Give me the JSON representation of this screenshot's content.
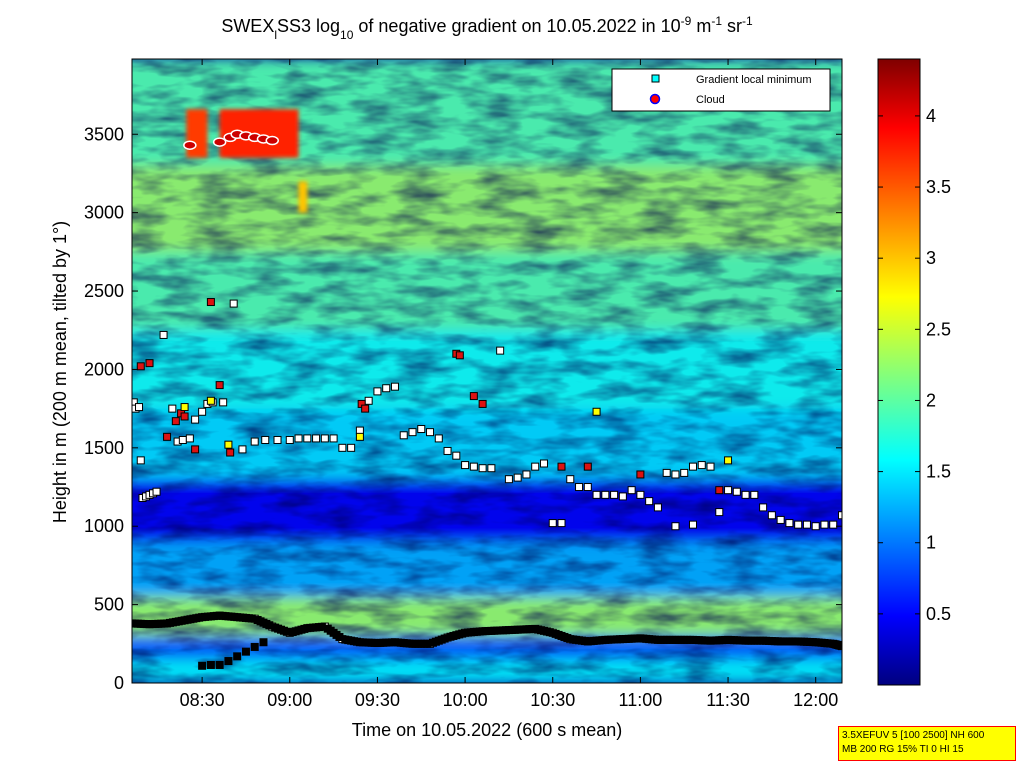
{
  "window": {
    "title": "SWEXₗSS3 log₁₀ of negative gradient on 10.05.2022 in 10⁻⁹ m⁻¹ sr⁻¹"
  },
  "params": {
    "line1": "3.5XEFUV 5 [100 2500] NH 600",
    "line2": "MB 200 RG 15% TI 0 HI 15"
  },
  "chart_data": {
    "type": "heatmap",
    "title_parts": {
      "t1": "SWEX",
      "t1_sub": "l",
      "t2": "SS3 log",
      "t2_sub": "10",
      "t3": " of negative gradient on 10.05.2022 in 10",
      "t3_sup": "-9",
      "t4": " m",
      "t4_sup": "-1",
      "t5": " sr",
      "t5_sup": "-1"
    },
    "xlabel": "Time on 10.05.2022 (600 s mean)",
    "ylabel": "Height in m (200 m mean, tilted by 1°)",
    "x_ticks": [
      "08:30",
      "09:00",
      "09:30",
      "10:00",
      "10:30",
      "11:00",
      "11:30",
      "12:00"
    ],
    "x_tick_hours": [
      8.5,
      9.0,
      9.5,
      10.0,
      10.5,
      11.0,
      11.5,
      12.0
    ],
    "xlim_hours": [
      8.1,
      12.15
    ],
    "y_ticks": [
      "0",
      "500",
      "1000",
      "1500",
      "2000",
      "2500",
      "3000",
      "3500"
    ],
    "y_tick_values": [
      0,
      500,
      1000,
      1500,
      2000,
      2500,
      3000,
      3500
    ],
    "ylim": [
      0,
      3980
    ],
    "colorbar": {
      "ticks": [
        "0.5",
        "1",
        "1.5",
        "2",
        "2.5",
        "3",
        "3.5",
        "4"
      ],
      "tick_values": [
        0.5,
        1,
        1.5,
        2,
        2.5,
        3,
        3.5,
        4
      ],
      "range": [
        0,
        4.4
      ],
      "colormap": "jet"
    },
    "legend": {
      "placement": "top-right",
      "entries": [
        {
          "label": "Gradient local minimum",
          "marker": "square",
          "color": "#00ffff"
        },
        {
          "label": "Cloud",
          "marker": "circle",
          "color": "#ff0000",
          "edge": "#0000ff"
        }
      ]
    },
    "layers": [
      {
        "h": 3600,
        "v": 2.0
      },
      {
        "h": 3000,
        "v": 2.3
      },
      {
        "h": 2500,
        "v": 2.0
      },
      {
        "h": 2000,
        "v": 1.7
      },
      {
        "h": 1500,
        "v": 1.5
      },
      {
        "h": 1100,
        "v": 0.5
      },
      {
        "h": 700,
        "v": 1.3
      },
      {
        "h": 400,
        "v": 2.3
      },
      {
        "h": 200,
        "v": 1.0
      },
      {
        "h": 100,
        "v": 1.6
      }
    ],
    "cloud_heatmap": [
      {
        "t0": 8.41,
        "t1": 8.53,
        "h0": 3350,
        "h1": 3660,
        "v": 3.6
      },
      {
        "t0": 8.6,
        "t1": 9.05,
        "h0": 3350,
        "h1": 3660,
        "v": 3.7
      },
      {
        "t0": 9.05,
        "t1": 9.1,
        "h0": 3000,
        "h1": 3200,
        "v": 3.0
      }
    ],
    "series": [
      {
        "name": "Gradient local minimum",
        "points_t_h": [
          [
            8.11,
            1790
          ],
          [
            8.12,
            1750
          ],
          [
            8.14,
            1760
          ],
          [
            8.16,
            1180
          ],
          [
            8.18,
            1190
          ],
          [
            8.2,
            1200
          ],
          [
            8.22,
            1210
          ],
          [
            8.24,
            1220
          ],
          [
            8.15,
            1420
          ],
          [
            8.28,
            2220
          ],
          [
            8.33,
            1750
          ],
          [
            8.36,
            1540
          ],
          [
            8.39,
            1550
          ],
          [
            8.43,
            1560
          ],
          [
            8.46,
            1680
          ],
          [
            8.5,
            1730
          ],
          [
            8.53,
            1780
          ],
          [
            8.56,
            1790
          ],
          [
            8.62,
            1790
          ],
          [
            8.68,
            2420
          ],
          [
            8.73,
            1490
          ],
          [
            8.8,
            1540
          ],
          [
            8.86,
            1550
          ],
          [
            8.93,
            1550
          ],
          [
            9.0,
            1550
          ],
          [
            9.05,
            1560
          ],
          [
            9.1,
            1560
          ],
          [
            9.15,
            1560
          ],
          [
            9.2,
            1560
          ],
          [
            9.25,
            1560
          ],
          [
            9.3,
            1500
          ],
          [
            9.35,
            1500
          ],
          [
            9.4,
            1610
          ],
          [
            9.45,
            1800
          ],
          [
            9.5,
            1860
          ],
          [
            9.55,
            1880
          ],
          [
            9.6,
            1890
          ],
          [
            9.65,
            1580
          ],
          [
            9.7,
            1600
          ],
          [
            9.75,
            1620
          ],
          [
            9.8,
            1600
          ],
          [
            9.85,
            1560
          ],
          [
            9.9,
            1480
          ],
          [
            9.95,
            1450
          ],
          [
            10.0,
            1390
          ],
          [
            10.05,
            1380
          ],
          [
            10.1,
            1370
          ],
          [
            10.15,
            1370
          ],
          [
            10.2,
            2120
          ],
          [
            10.25,
            1300
          ],
          [
            10.3,
            1310
          ],
          [
            10.35,
            1330
          ],
          [
            10.4,
            1380
          ],
          [
            10.45,
            1400
          ],
          [
            10.5,
            1020
          ],
          [
            10.55,
            1020
          ],
          [
            10.6,
            1300
          ],
          [
            10.65,
            1250
          ],
          [
            10.7,
            1250
          ],
          [
            10.75,
            1200
          ],
          [
            10.8,
            1200
          ],
          [
            10.85,
            1200
          ],
          [
            10.9,
            1190
          ],
          [
            10.95,
            1230
          ],
          [
            11.0,
            1200
          ],
          [
            11.05,
            1160
          ],
          [
            11.1,
            1120
          ],
          [
            11.15,
            1340
          ],
          [
            11.2,
            1330
          ],
          [
            11.25,
            1340
          ],
          [
            11.3,
            1380
          ],
          [
            11.35,
            1390
          ],
          [
            11.4,
            1380
          ],
          [
            11.45,
            1090
          ],
          [
            11.5,
            1230
          ],
          [
            11.55,
            1220
          ],
          [
            11.6,
            1200
          ],
          [
            11.65,
            1200
          ],
          [
            11.7,
            1120
          ],
          [
            11.75,
            1070
          ],
          [
            11.8,
            1040
          ],
          [
            11.85,
            1020
          ],
          [
            11.9,
            1010
          ],
          [
            11.95,
            1010
          ],
          [
            12.0,
            1000
          ],
          [
            12.05,
            1010
          ],
          [
            12.1,
            1010
          ],
          [
            12.15,
            1070
          ],
          [
            11.2,
            1000
          ],
          [
            11.3,
            1010
          ]
        ],
        "low_line_t_h": [
          [
            8.1,
            380
          ],
          [
            8.2,
            375
          ],
          [
            8.3,
            380
          ],
          [
            8.4,
            400
          ],
          [
            8.5,
            420
          ],
          [
            8.6,
            430
          ],
          [
            8.7,
            420
          ],
          [
            8.8,
            410
          ],
          [
            8.9,
            360
          ],
          [
            9.0,
            320
          ],
          [
            9.1,
            350
          ],
          [
            9.2,
            360
          ],
          [
            9.3,
            280
          ],
          [
            9.4,
            260
          ],
          [
            9.5,
            255
          ],
          [
            9.6,
            260
          ],
          [
            9.7,
            250
          ],
          [
            9.8,
            250
          ],
          [
            9.9,
            290
          ],
          [
            10.0,
            320
          ],
          [
            10.1,
            330
          ],
          [
            10.2,
            335
          ],
          [
            10.3,
            340
          ],
          [
            10.4,
            345
          ],
          [
            10.5,
            320
          ],
          [
            10.6,
            280
          ],
          [
            10.7,
            265
          ],
          [
            10.8,
            275
          ],
          [
            10.9,
            280
          ],
          [
            11.0,
            285
          ],
          [
            11.1,
            275
          ],
          [
            11.2,
            275
          ],
          [
            11.3,
            275
          ],
          [
            11.4,
            270
          ],
          [
            11.5,
            275
          ],
          [
            11.6,
            270
          ],
          [
            11.7,
            270
          ],
          [
            11.8,
            265
          ],
          [
            11.9,
            265
          ],
          [
            12.0,
            260
          ],
          [
            12.1,
            250
          ],
          [
            12.15,
            235
          ]
        ],
        "branch_t_h": [
          [
            8.5,
            110
          ],
          [
            8.55,
            115
          ],
          [
            8.6,
            115
          ],
          [
            8.65,
            140
          ],
          [
            8.7,
            170
          ],
          [
            8.75,
            200
          ],
          [
            8.8,
            230
          ],
          [
            8.85,
            260
          ]
        ]
      },
      {
        "name": "Cloud",
        "points_t_h": [
          [
            8.43,
            3430
          ],
          [
            8.6,
            3450
          ],
          [
            8.66,
            3480
          ],
          [
            8.7,
            3500
          ],
          [
            8.75,
            3490
          ],
          [
            8.8,
            3480
          ],
          [
            8.85,
            3470
          ],
          [
            8.9,
            3460
          ]
        ]
      }
    ],
    "red_squares_t_h": [
      [
        8.15,
        2020
      ],
      [
        8.2,
        2040
      ],
      [
        8.3,
        1570
      ],
      [
        8.35,
        1670
      ],
      [
        8.38,
        1720
      ],
      [
        8.4,
        1700
      ],
      [
        8.46,
        1490
      ],
      [
        8.55,
        2430
      ],
      [
        8.6,
        1900
      ],
      [
        8.66,
        1470
      ],
      [
        9.41,
        1780
      ],
      [
        9.43,
        1750
      ],
      [
        9.95,
        2100
      ],
      [
        9.97,
        2090
      ],
      [
        10.05,
        1830
      ],
      [
        10.1,
        1780
      ],
      [
        10.55,
        1380
      ],
      [
        10.7,
        1380
      ],
      [
        11.0,
        1330
      ],
      [
        11.45,
        1230
      ]
    ],
    "yellow_squares_t_h": [
      [
        8.4,
        1760
      ],
      [
        8.55,
        1800
      ],
      [
        8.65,
        1520
      ],
      [
        9.4,
        1570
      ],
      [
        10.75,
        1730
      ],
      [
        11.5,
        1420
      ]
    ]
  }
}
